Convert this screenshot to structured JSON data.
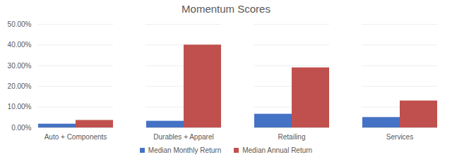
{
  "chart_data": {
    "type": "bar",
    "title": "Momentum Scores",
    "categories": [
      "Auto + Components",
      "Durables + Apparel",
      "Retailing",
      "Services"
    ],
    "series": [
      {
        "name": "Median Monthly Return",
        "color": "#4472c4",
        "values": [
          1.8,
          3.2,
          6.6,
          5.0
        ]
      },
      {
        "name": "Median Annual Return",
        "color": "#c0504d",
        "values": [
          3.6,
          40.0,
          29.0,
          13.0
        ]
      }
    ],
    "ylim": [
      0,
      50
    ],
    "yticks": [
      {
        "value": 0,
        "label": "0.00%"
      },
      {
        "value": 10,
        "label": "10.00%"
      },
      {
        "value": 20,
        "label": "20.00%"
      },
      {
        "value": 30,
        "label": "30.00%"
      },
      {
        "value": 40,
        "label": "40.00%"
      },
      {
        "value": 50,
        "label": "50.00%"
      }
    ],
    "grid": true,
    "legend": "bottom"
  }
}
